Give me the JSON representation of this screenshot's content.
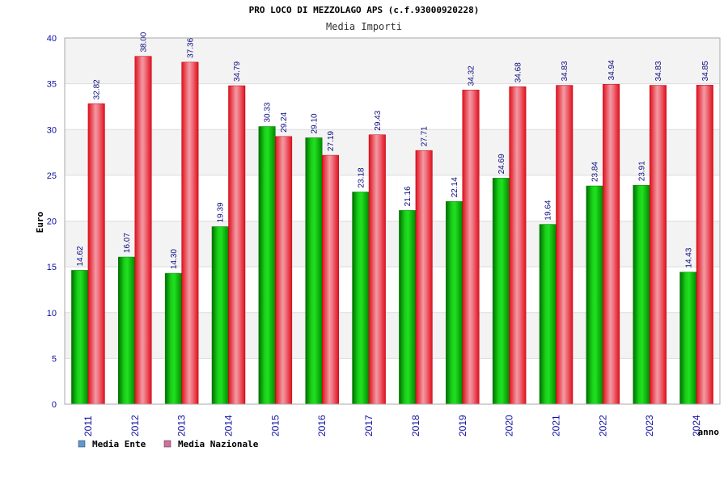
{
  "chart_data": {
    "type": "bar",
    "title": "PRO LOCO DI MEZZOLAGO APS (c.f.93000920228)",
    "subtitle": "Media Importi",
    "xlabel": "anno",
    "ylabel": "Euro",
    "ylim": [
      0,
      40
    ],
    "yticks": [
      "0",
      "5",
      "10",
      "15",
      "20",
      "25",
      "30",
      "35",
      "40"
    ],
    "grid": true,
    "legend_position": "bottom-left",
    "categories": [
      "2011",
      "2012",
      "2013",
      "2014",
      "2015",
      "2016",
      "2017",
      "2018",
      "2019",
      "2020",
      "2021",
      "2022",
      "2023",
      "2024"
    ],
    "series": [
      {
        "name": "Media Ente",
        "color": "#00b000",
        "legend_color": "#5b9bd5",
        "values": [
          14.62,
          16.07,
          14.3,
          19.39,
          30.33,
          29.1,
          23.18,
          21.16,
          22.14,
          24.69,
          19.64,
          23.84,
          23.91,
          14.43
        ],
        "labels": [
          "14.62",
          "16.07",
          "14.30",
          "19.39",
          "30.33",
          "29.10",
          "23.18",
          "21.16",
          "22.14",
          "24.69",
          "19.64",
          "23.84",
          "23.91",
          "14.43"
        ]
      },
      {
        "name": "Media Nazionale",
        "color": "#e8101e",
        "legend_color": "#d26fa0",
        "values": [
          32.82,
          38.0,
          37.36,
          34.79,
          29.24,
          27.19,
          29.43,
          27.71,
          34.32,
          34.68,
          34.83,
          34.94,
          34.83,
          34.85
        ],
        "labels": [
          "32.82",
          "38.00",
          "37.36",
          "34.79",
          "29.24",
          "27.19",
          "29.43",
          "27.71",
          "34.32",
          "34.68",
          "34.83",
          "34.94",
          "34.83",
          "34.85"
        ]
      }
    ]
  }
}
